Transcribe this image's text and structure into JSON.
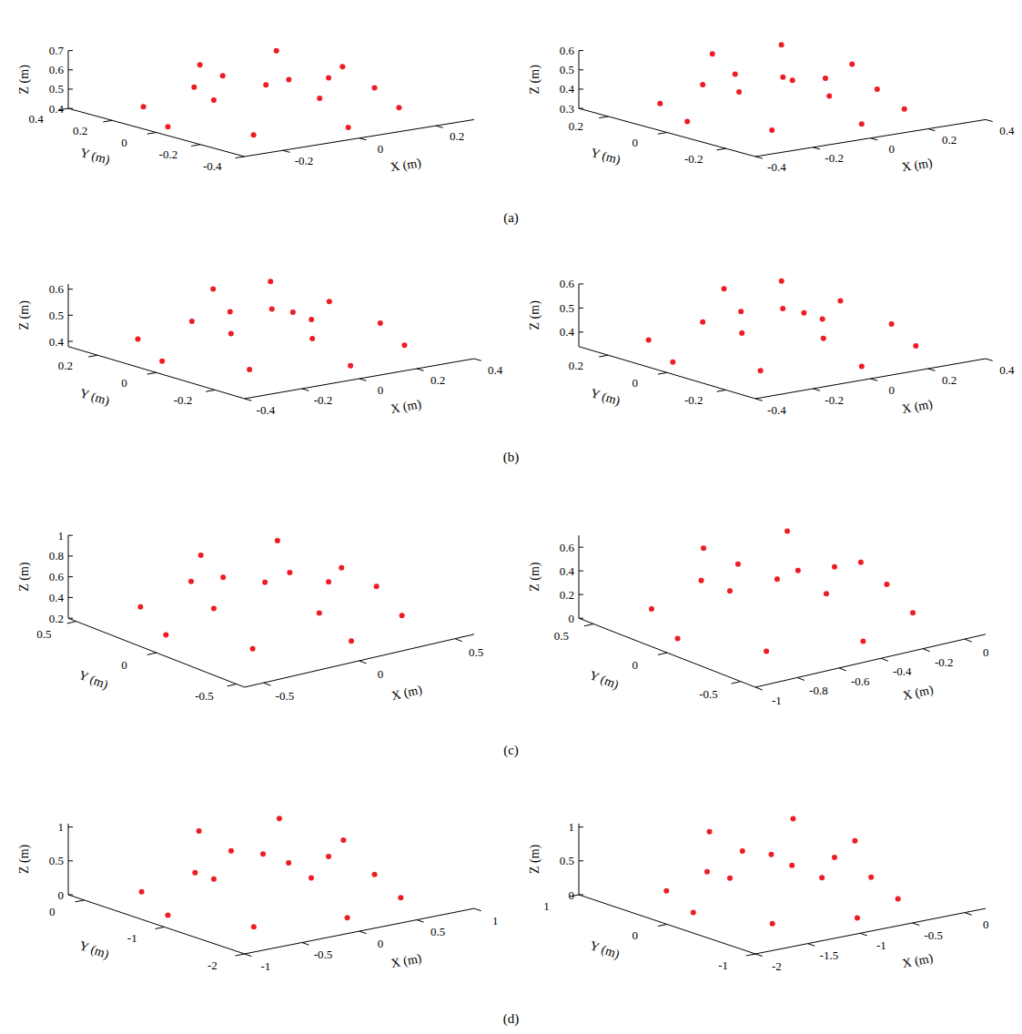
{
  "chart_data": [
    {
      "type": "scatter3d",
      "color": "#ee1c25",
      "xlabel": "X (m)",
      "ylabel": "Y (m)",
      "zlabel": "Z (m)",
      "xlim": [
        -0.3,
        0.3
      ],
      "ylim": [
        -0.4,
        0.4
      ],
      "zlim": [
        0.4,
        0.7
      ],
      "xticks": [
        -0.2,
        0,
        0.2
      ],
      "yticks": [
        -0.4,
        -0.2,
        0,
        0.2,
        0.4
      ],
      "zticks": [
        0.4,
        0.5,
        0.6,
        0.7
      ],
      "x": [
        0.27,
        0.19,
        0,
        -0.19,
        -0.27,
        -0.19,
        0,
        0.19,
        0.15,
        0,
        -0.15,
        0,
        0.1,
        -0.1,
        -0.1,
        0.1
      ],
      "y": [
        0,
        0.25,
        0.35,
        0.25,
        0,
        -0.25,
        -0.35,
        -0.25,
        0,
        0.22,
        0,
        -0.22,
        0.15,
        0.15,
        -0.15,
        -0.15
      ],
      "z": [
        0.45,
        0.44,
        0.43,
        0.42,
        0.42,
        0.43,
        0.44,
        0.45,
        0.54,
        0.53,
        0.52,
        0.55,
        0.65,
        0.64,
        0.63,
        0.66
      ]
    },
    {
      "type": "scatter3d",
      "color": "#ee1c25",
      "xlabel": "X (m)",
      "ylabel": "Y (m)",
      "zlabel": "Z (m)",
      "xlim": [
        -0.4,
        0.4
      ],
      "ylim": [
        -0.3,
        0.3
      ],
      "zlim": [
        0.3,
        0.6
      ],
      "xticks": [
        -0.4,
        -0.2,
        0,
        0.2,
        0.4
      ],
      "yticks": [
        -0.2,
        0,
        0.2
      ],
      "zticks": [
        0.3,
        0.4,
        0.5,
        0.6
      ],
      "x": [
        0.33,
        0.23,
        0,
        -0.23,
        -0.33,
        -0.23,
        0,
        0.23,
        0.15,
        0,
        -0.15,
        0,
        0.12,
        -0.12,
        -0.12,
        0.12
      ],
      "y": [
        0,
        0.19,
        0.27,
        0.19,
        0,
        -0.19,
        -0.27,
        -0.19,
        0,
        0.16,
        0,
        -0.16,
        0.12,
        0.12,
        -0.12,
        -0.12
      ],
      "z": [
        0.35,
        0.34,
        0.34,
        0.33,
        0.34,
        0.35,
        0.36,
        0.35,
        0.45,
        0.44,
        0.45,
        0.46,
        0.58,
        0.59,
        0.57,
        0.58
      ]
    },
    {
      "type": "scatter3d",
      "color": "#ee1c25",
      "xlabel": "X (m)",
      "ylabel": "Y (m)",
      "zlabel": "Z (m)",
      "xlim": [
        -0.4,
        0.4
      ],
      "ylim": [
        -0.3,
        0.3
      ],
      "zlim": [
        0.38,
        0.62
      ],
      "xticks": [
        -0.4,
        -0.2,
        0,
        0.2,
        0.4
      ],
      "yticks": [
        -0.2,
        0,
        0.2
      ],
      "zticks": [
        0.4,
        0.5,
        0.6
      ],
      "x": [
        0.38,
        0.27,
        0,
        -0.27,
        -0.38,
        -0.27,
        0,
        0.27,
        0.14,
        0,
        -0.14,
        0,
        0.1,
        -0.1,
        -0.1,
        0.1
      ],
      "y": [
        0,
        0.19,
        0.27,
        0.19,
        0,
        -0.19,
        -0.27,
        -0.19,
        0,
        0.14,
        0,
        -0.14,
        0.1,
        0.1,
        -0.1,
        -0.1
      ],
      "z": [
        0.42,
        0.42,
        0.41,
        0.42,
        0.42,
        0.43,
        0.42,
        0.42,
        0.48,
        0.49,
        0.48,
        0.48,
        0.6,
        0.61,
        0.6,
        0.59
      ]
    },
    {
      "type": "scatter3d",
      "color": "#ee1c25",
      "xlabel": "X (m)",
      "ylabel": "Y (m)",
      "zlabel": "Z (m)",
      "xlim": [
        -0.4,
        0.4
      ],
      "ylim": [
        -0.3,
        0.3
      ],
      "zlim": [
        0.34,
        0.6
      ],
      "xticks": [
        -0.4,
        -0.2,
        0,
        0.2,
        0.4
      ],
      "yticks": [
        -0.2,
        0,
        0.2
      ],
      "zticks": [
        0.4,
        0.5,
        0.6
      ],
      "x": [
        0.38,
        0.27,
        0,
        -0.27,
        -0.38,
        -0.27,
        0,
        0.27,
        0.14,
        0,
        -0.14,
        0,
        0.1,
        -0.1,
        -0.1,
        0.1
      ],
      "y": [
        0,
        0.19,
        0.27,
        0.19,
        0,
        -0.19,
        -0.27,
        -0.19,
        0,
        0.14,
        0,
        -0.14,
        0.1,
        0.1,
        -0.1,
        -0.1
      ],
      "z": [
        0.38,
        0.38,
        0.37,
        0.38,
        0.38,
        0.39,
        0.38,
        0.38,
        0.45,
        0.46,
        0.45,
        0.45,
        0.58,
        0.59,
        0.58,
        0.57
      ]
    },
    {
      "type": "scatter3d",
      "color": "#ee1c25",
      "xlabel": "X (m)",
      "ylabel": "Y (m)",
      "zlabel": "Z (m)",
      "xlim": [
        -0.6,
        0.6
      ],
      "ylim": [
        -0.55,
        0.55
      ],
      "zlim": [
        0.2,
        1
      ],
      "xticks": [
        -0.5,
        0,
        0.5
      ],
      "yticks": [
        -0.5,
        0,
        0.5
      ],
      "zticks": [
        0.2,
        0.4,
        0.6,
        0.8,
        1
      ],
      "x": [
        0.55,
        0.39,
        0,
        -0.39,
        -0.55,
        -0.39,
        0,
        0.39,
        0.3,
        0,
        -0.3,
        0,
        0.2,
        -0.2,
        -0.2,
        0.2
      ],
      "y": [
        0,
        0.35,
        0.5,
        0.35,
        0,
        -0.35,
        -0.5,
        -0.35,
        0,
        0.3,
        0,
        -0.3,
        0.2,
        0.2,
        -0.2,
        -0.2
      ],
      "z": [
        0.35,
        0.34,
        0.33,
        0.34,
        0.35,
        0.36,
        0.36,
        0.35,
        0.5,
        0.49,
        0.5,
        0.51,
        0.82,
        0.85,
        0.83,
        0.8
      ]
    },
    {
      "type": "scatter3d",
      "color": "#ee1c25",
      "xlabel": "X (m)",
      "ylabel": "Y (m)",
      "zlabel": "Z (m)",
      "xlim": [
        -1,
        0.1
      ],
      "ylim": [
        -0.6,
        0.6
      ],
      "zlim": [
        0,
        0.7
      ],
      "xticks": [
        -1,
        -0.8,
        -0.6,
        -0.4,
        -0.2,
        0
      ],
      "yticks": [
        -0.5,
        0,
        0.5
      ],
      "zticks": [
        0,
        0.2,
        0.4,
        0.6
      ],
      "x": [
        0.05,
        -0.1,
        -0.45,
        -0.8,
        -0.95,
        -0.8,
        -0.45,
        -0.1,
        -0.2,
        -0.45,
        -0.7,
        -0.45,
        -0.25,
        -0.65,
        -0.65,
        -0.25
      ],
      "y": [
        0,
        0.39,
        0.55,
        0.39,
        0,
        -0.39,
        -0.55,
        -0.39,
        0,
        0.3,
        0,
        -0.3,
        0.25,
        0.25,
        -0.25,
        -0.25
      ],
      "z": [
        0.15,
        0.14,
        0.12,
        0.1,
        0.1,
        0.12,
        0.14,
        0.16,
        0.4,
        0.38,
        0.4,
        0.42,
        0.6,
        0.62,
        0.6,
        0.58
      ]
    },
    {
      "type": "scatter3d",
      "color": "#ee1c25",
      "xlabel": "X (m)",
      "ylabel": "Y (m)",
      "zlabel": "Z (m)",
      "xlim": [
        -1,
        1
      ],
      "ylim": [
        -2,
        0.2
      ],
      "zlim": [
        0,
        1.05
      ],
      "xticks": [
        -1,
        -0.5,
        0,
        0.5,
        1
      ],
      "yticks": [
        -2,
        -1,
        0
      ],
      "zticks": [
        0,
        0.5,
        1
      ],
      "x": [
        0.9,
        0.64,
        0,
        -0.64,
        -0.9,
        -0.64,
        0,
        0.64,
        0.5,
        0,
        -0.5,
        0,
        0.35,
        -0.35,
        -0.35,
        0.35
      ],
      "y": [
        -0.9,
        -0.2,
        0.05,
        -0.2,
        -0.9,
        -1.6,
        -1.85,
        -1.6,
        -0.9,
        -0.4,
        -0.9,
        -1.4,
        -0.5,
        -0.5,
        -1.3,
        -1.3
      ],
      "z": [
        0.1,
        0.08,
        0.05,
        0.08,
        0.1,
        0.12,
        0.14,
        0.12,
        0.5,
        0.55,
        0.5,
        0.55,
        0.95,
        1.0,
        0.98,
        0.95
      ]
    },
    {
      "type": "scatter3d",
      "color": "#ee1c25",
      "xlabel": "X (m)",
      "ylabel": "Y (m)",
      "zlabel": "Z (m)",
      "xlim": [
        -2,
        0.2
      ],
      "ylim": [
        -1,
        1
      ],
      "zlim": [
        0,
        1.05
      ],
      "xticks": [
        -2,
        -1.5,
        -1,
        -0.5,
        0
      ],
      "yticks": [
        -1,
        0,
        1
      ],
      "zticks": [
        0,
        0.5,
        1
      ],
      "x": [
        -0.05,
        -0.3,
        -0.9,
        -1.5,
        -1.75,
        -1.5,
        -0.9,
        -0.3,
        -0.4,
        -0.9,
        -1.4,
        -0.9,
        -0.5,
        -1.3,
        -1.3,
        -0.5
      ],
      "y": [
        0,
        0.6,
        0.85,
        0.6,
        0,
        -0.6,
        -0.85,
        -0.6,
        0,
        0.45,
        0,
        -0.45,
        0.35,
        0.35,
        -0.35,
        -0.35
      ],
      "z": [
        0.1,
        0.09,
        0.07,
        0.08,
        0.1,
        0.12,
        0.13,
        0.12,
        0.5,
        0.55,
        0.5,
        0.55,
        0.95,
        1.0,
        0.97,
        0.93
      ]
    }
  ],
  "panel_labels": [
    "(a)",
    "(b)",
    "(c)",
    "(d)"
  ]
}
